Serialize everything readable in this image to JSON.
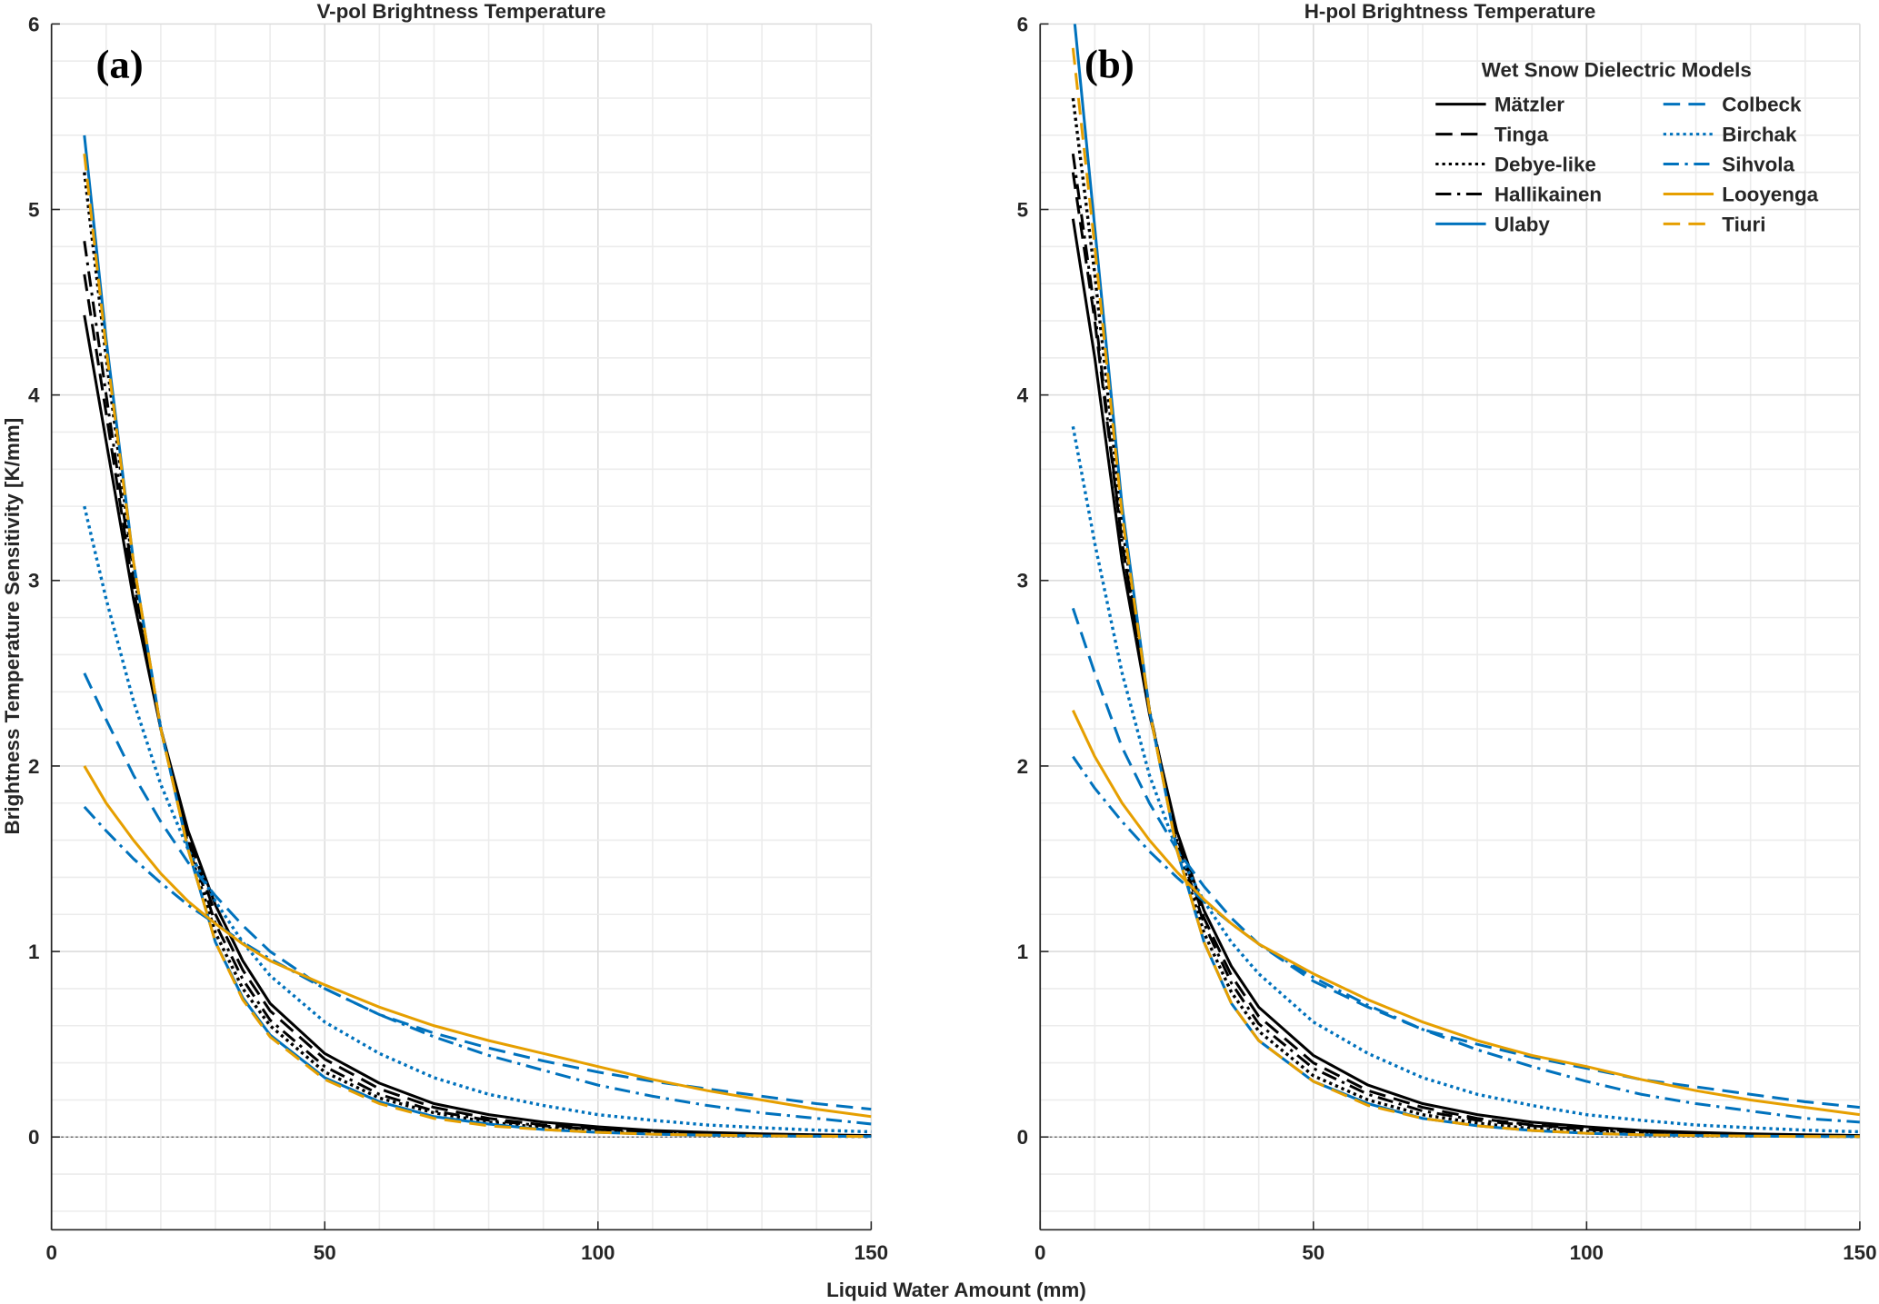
{
  "chart_data": [
    {
      "type": "line",
      "panel_label": "(a)",
      "title": "V-pol Brightness Temperature",
      "xlabel": "Liquid Water Amount (mm)",
      "ylabel": "Brightness Temperature Sensitivity [K/mm]",
      "xlim": [
        0,
        150
      ],
      "ylim": [
        -0.5,
        6
      ],
      "xticks": [
        "0",
        "50",
        "100",
        "150"
      ],
      "yticks": [
        "0",
        "1",
        "2",
        "3",
        "4",
        "5",
        "6"
      ],
      "grid": true,
      "x": [
        6,
        10,
        15,
        20,
        25,
        30,
        35,
        40,
        50,
        60,
        70,
        80,
        90,
        100,
        110,
        120,
        130,
        140,
        150
      ],
      "series": [
        {
          "name": "Mätzler",
          "values": [
            4.43,
            3.75,
            2.9,
            2.2,
            1.65,
            1.25,
            0.95,
            0.72,
            0.45,
            0.29,
            0.18,
            0.12,
            0.08,
            0.055,
            0.035,
            0.025,
            0.017,
            0.012,
            0.008
          ]
        },
        {
          "name": "Tinga",
          "values": [
            4.65,
            3.9,
            2.95,
            2.2,
            1.62,
            1.2,
            0.9,
            0.68,
            0.42,
            0.26,
            0.16,
            0.1,
            0.065,
            0.045,
            0.03,
            0.02,
            0.013,
            0.009,
            0.006
          ]
        },
        {
          "name": "Debye-like",
          "values": [
            5.2,
            4.2,
            3.05,
            2.2,
            1.57,
            1.1,
            0.8,
            0.6,
            0.35,
            0.21,
            0.13,
            0.08,
            0.05,
            0.03,
            0.02,
            0.013,
            0.008,
            0.005,
            0.003
          ]
        },
        {
          "name": "Hallikainen",
          "values": [
            4.83,
            4.0,
            3.0,
            2.2,
            1.6,
            1.15,
            0.85,
            0.63,
            0.38,
            0.23,
            0.14,
            0.09,
            0.06,
            0.04,
            0.025,
            0.016,
            0.01,
            0.007,
            0.005
          ]
        },
        {
          "name": "Ulaby",
          "values": [
            5.4,
            4.3,
            3.1,
            2.2,
            1.55,
            1.05,
            0.75,
            0.55,
            0.32,
            0.19,
            0.11,
            0.07,
            0.04,
            0.025,
            0.015,
            0.01,
            0.006,
            0.004,
            0.003
          ]
        },
        {
          "name": "Colbeck",
          "values": [
            2.5,
            2.25,
            1.95,
            1.7,
            1.48,
            1.3,
            1.14,
            1.0,
            0.8,
            0.66,
            0.56,
            0.48,
            0.41,
            0.35,
            0.3,
            0.26,
            0.22,
            0.18,
            0.15
          ]
        },
        {
          "name": "Birchak",
          "values": [
            3.4,
            2.9,
            2.35,
            1.9,
            1.55,
            1.27,
            1.05,
            0.87,
            0.62,
            0.45,
            0.32,
            0.23,
            0.17,
            0.12,
            0.09,
            0.065,
            0.05,
            0.037,
            0.028
          ]
        },
        {
          "name": "Sihvola",
          "values": [
            1.78,
            1.65,
            1.5,
            1.37,
            1.25,
            1.15,
            1.05,
            0.96,
            0.8,
            0.66,
            0.54,
            0.44,
            0.36,
            0.28,
            0.22,
            0.17,
            0.13,
            0.1,
            0.07
          ]
        },
        {
          "name": "Looyenga",
          "values": [
            2.0,
            1.8,
            1.6,
            1.42,
            1.27,
            1.15,
            1.04,
            0.95,
            0.82,
            0.7,
            0.6,
            0.52,
            0.45,
            0.38,
            0.31,
            0.25,
            0.2,
            0.15,
            0.11
          ]
        },
        {
          "name": "Tiuri",
          "values": [
            5.3,
            4.25,
            3.1,
            2.2,
            1.55,
            1.05,
            0.74,
            0.54,
            0.31,
            0.18,
            0.1,
            0.06,
            0.04,
            0.025,
            0.015,
            0.01,
            0.006,
            0.004,
            0.003
          ]
        }
      ]
    },
    {
      "type": "line",
      "panel_label": "(b)",
      "title": "H-pol Brightness Temperature",
      "xlim": [
        0,
        150
      ],
      "ylim": [
        -0.5,
        6
      ],
      "xticks": [
        "0",
        "50",
        "100",
        "150"
      ],
      "yticks": [
        "0",
        "1",
        "2",
        "3",
        "4",
        "5",
        "6"
      ],
      "grid": true,
      "legend": {
        "title": "Wet Snow Dielectric Models",
        "placement": "top-right",
        "columns": 2
      },
      "x": [
        6,
        10,
        15,
        20,
        25,
        30,
        35,
        40,
        50,
        60,
        70,
        80,
        90,
        100,
        110,
        120,
        130,
        140,
        150
      ],
      "series": [
        {
          "name": "Mätzler",
          "values": [
            4.95,
            4.2,
            3.1,
            2.28,
            1.65,
            1.22,
            0.92,
            0.7,
            0.44,
            0.28,
            0.18,
            0.12,
            0.08,
            0.055,
            0.035,
            0.025,
            0.017,
            0.012,
            0.008
          ]
        },
        {
          "name": "Tinga",
          "values": [
            5.2,
            4.4,
            3.2,
            2.3,
            1.62,
            1.18,
            0.87,
            0.65,
            0.4,
            0.25,
            0.16,
            0.1,
            0.065,
            0.045,
            0.03,
            0.02,
            0.013,
            0.009,
            0.006
          ]
        },
        {
          "name": "Debye-like",
          "values": [
            5.6,
            4.65,
            3.3,
            2.3,
            1.57,
            1.1,
            0.78,
            0.57,
            0.33,
            0.2,
            0.12,
            0.075,
            0.045,
            0.03,
            0.02,
            0.012,
            0.008,
            0.005,
            0.003
          ]
        },
        {
          "name": "Hallikainen",
          "values": [
            5.3,
            4.45,
            3.2,
            2.3,
            1.6,
            1.15,
            0.83,
            0.61,
            0.37,
            0.23,
            0.14,
            0.09,
            0.06,
            0.04,
            0.025,
            0.016,
            0.01,
            0.007,
            0.005
          ]
        },
        {
          "name": "Ulaby",
          "values": [
            6.1,
            4.9,
            3.4,
            2.3,
            1.55,
            1.05,
            0.72,
            0.52,
            0.3,
            0.18,
            0.1,
            0.06,
            0.035,
            0.02,
            0.012,
            0.008,
            0.005,
            0.003,
            0.002
          ]
        },
        {
          "name": "Colbeck",
          "values": [
            2.85,
            2.5,
            2.1,
            1.8,
            1.55,
            1.35,
            1.18,
            1.04,
            0.84,
            0.7,
            0.58,
            0.5,
            0.43,
            0.37,
            0.31,
            0.27,
            0.23,
            0.19,
            0.16
          ]
        },
        {
          "name": "Birchak",
          "values": [
            3.83,
            3.2,
            2.5,
            1.95,
            1.55,
            1.27,
            1.05,
            0.88,
            0.62,
            0.45,
            0.32,
            0.23,
            0.17,
            0.12,
            0.09,
            0.065,
            0.05,
            0.037,
            0.028
          ]
        },
        {
          "name": "Sihvola",
          "values": [
            2.05,
            1.88,
            1.7,
            1.54,
            1.4,
            1.27,
            1.15,
            1.04,
            0.86,
            0.71,
            0.58,
            0.47,
            0.38,
            0.3,
            0.23,
            0.18,
            0.14,
            0.1,
            0.08
          ]
        },
        {
          "name": "Looyenga",
          "values": [
            2.3,
            2.05,
            1.8,
            1.6,
            1.43,
            1.28,
            1.15,
            1.04,
            0.88,
            0.74,
            0.62,
            0.52,
            0.44,
            0.38,
            0.31,
            0.25,
            0.2,
            0.16,
            0.12
          ]
        },
        {
          "name": "Tiuri",
          "values": [
            5.87,
            4.8,
            3.35,
            2.3,
            1.55,
            1.05,
            0.72,
            0.52,
            0.3,
            0.17,
            0.1,
            0.06,
            0.035,
            0.02,
            0.012,
            0.008,
            0.005,
            0.003,
            0.002
          ]
        }
      ]
    }
  ],
  "styles": {
    "Mätzler": {
      "color": "#000000",
      "dash": "solid"
    },
    "Tinga": {
      "color": "#000000",
      "dash": "dashed"
    },
    "Debye-like": {
      "color": "#000000",
      "dash": "dotted"
    },
    "Hallikainen": {
      "color": "#000000",
      "dash": "dashdot"
    },
    "Ulaby": {
      "color": "#0072BD",
      "dash": "solid"
    },
    "Colbeck": {
      "color": "#0072BD",
      "dash": "dashed"
    },
    "Birchak": {
      "color": "#0072BD",
      "dash": "dotted"
    },
    "Sihvola": {
      "color": "#0072BD",
      "dash": "dashdot"
    },
    "Looyenga": {
      "color": "#E69F00",
      "dash": "solid"
    },
    "Tiuri": {
      "color": "#E69F00",
      "dash": "dashed"
    }
  }
}
